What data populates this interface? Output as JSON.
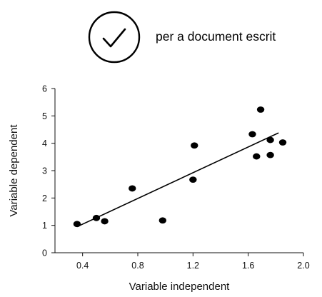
{
  "header": {
    "icon": "check-circle-icon",
    "text": "per a document escrit"
  },
  "chart_data": {
    "type": "scatter",
    "title": "",
    "xlabel": "Variable independent",
    "ylabel": "Variable dependent",
    "xlim": [
      0.2,
      2.0
    ],
    "ylim": [
      0,
      6
    ],
    "xticks": [
      0.4,
      0.8,
      1.2,
      1.6,
      2.0
    ],
    "xtick_labels": [
      "0.4",
      "0.8",
      "1.2",
      "1.6",
      "2.0"
    ],
    "yticks": [
      0,
      1,
      2,
      3,
      4,
      5,
      6
    ],
    "ytick_labels": [
      "0",
      "1",
      "2",
      "3",
      "4",
      "5",
      "6"
    ],
    "grid": false,
    "legend": false,
    "series": [
      {
        "points": [
          {
            "x": 0.36,
            "y": 1.05
          },
          {
            "x": 0.5,
            "y": 1.27
          },
          {
            "x": 0.56,
            "y": 1.15
          },
          {
            "x": 0.76,
            "y": 2.35
          },
          {
            "x": 0.98,
            "y": 1.18
          },
          {
            "x": 1.2,
            "y": 2.67
          },
          {
            "x": 1.21,
            "y": 3.92
          },
          {
            "x": 1.63,
            "y": 4.33
          },
          {
            "x": 1.66,
            "y": 3.52
          },
          {
            "x": 1.69,
            "y": 5.23
          },
          {
            "x": 1.76,
            "y": 3.57
          },
          {
            "x": 1.76,
            "y": 4.12
          },
          {
            "x": 1.85,
            "y": 4.03
          }
        ]
      }
    ],
    "trendline": {
      "x": [
        0.36,
        1.82
      ],
      "y": [
        0.95,
        4.38
      ]
    }
  }
}
